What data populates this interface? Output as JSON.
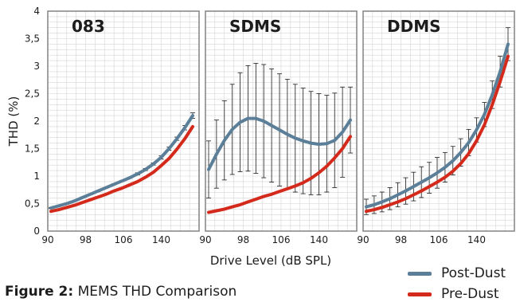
{
  "figure": {
    "caption_label": "Figure 2:",
    "caption_text": " MEMS THD Comparison",
    "colors": {
      "post": "#5c7f99",
      "pre": "#d42a1c",
      "error": "#1a1a1a",
      "grid": "#d4d4d4"
    }
  },
  "chart_data": [
    {
      "type": "line",
      "title": "083",
      "xlabel": "Drive Level (dB SPL)",
      "ylabel": "THD (%)",
      "x_ticks": [
        "90",
        "98",
        "106",
        "140"
      ],
      "ylim": [
        0,
        4
      ],
      "y_ticks": [
        "0",
        "0,5",
        "1",
        "1,5",
        "2",
        "2,5",
        "3",
        "3,5",
        "4"
      ],
      "grid": true,
      "legend": "bottom-right",
      "x": [
        90,
        92,
        94,
        96,
        98,
        100,
        102,
        104,
        106,
        108,
        110,
        112,
        114,
        116,
        118,
        120,
        122,
        124,
        126
      ],
      "series": [
        {
          "name": "Post-Dust",
          "values": [
            0.42,
            0.46,
            0.5,
            0.55,
            0.61,
            0.67,
            0.73,
            0.79,
            0.85,
            0.91,
            0.97,
            1.04,
            1.12,
            1.22,
            1.34,
            1.5,
            1.68,
            1.88,
            2.1
          ]
        },
        {
          "name": "Pre-Dust",
          "values": [
            0.36,
            0.39,
            0.43,
            0.47,
            0.52,
            0.57,
            0.62,
            0.67,
            0.73,
            0.78,
            0.84,
            0.9,
            0.98,
            1.07,
            1.19,
            1.32,
            1.49,
            1.68,
            1.9
          ]
        }
      ],
      "error": {
        "series": "Post-Dust",
        "values": [
          0.01,
          0.01,
          0.01,
          0.01,
          0.01,
          0.01,
          0.01,
          0.01,
          0.01,
          0.01,
          0.01,
          0.02,
          0.02,
          0.02,
          0.03,
          0.03,
          0.03,
          0.04,
          0.05
        ]
      }
    },
    {
      "type": "line",
      "title": "SDMS",
      "x_ticks": [
        "90",
        "98",
        "106",
        "140"
      ],
      "ylim": [
        0,
        4
      ],
      "grid": true,
      "x": [
        90,
        92,
        94,
        96,
        98,
        100,
        102,
        104,
        106,
        108,
        110,
        112,
        114,
        116,
        118,
        120,
        122,
        124,
        126
      ],
      "series": [
        {
          "name": "Post-Dust",
          "values": [
            1.12,
            1.4,
            1.65,
            1.85,
            1.98,
            2.05,
            2.05,
            2.0,
            1.92,
            1.84,
            1.76,
            1.69,
            1.64,
            1.6,
            1.58,
            1.59,
            1.65,
            1.8,
            2.02
          ]
        },
        {
          "name": "Pre-Dust",
          "values": [
            0.34,
            0.37,
            0.4,
            0.44,
            0.48,
            0.53,
            0.58,
            0.63,
            0.67,
            0.72,
            0.77,
            0.82,
            0.88,
            0.96,
            1.06,
            1.18,
            1.33,
            1.5,
            1.72
          ]
        }
      ],
      "error": {
        "series": "Post-Dust",
        "values": [
          0.52,
          0.62,
          0.72,
          0.82,
          0.9,
          0.96,
          1.0,
          1.03,
          1.03,
          1.02,
          1.0,
          0.98,
          0.96,
          0.94,
          0.92,
          0.88,
          0.86,
          0.82,
          0.6
        ]
      }
    },
    {
      "type": "line",
      "title": "DDMS",
      "x_ticks": [
        "90",
        "98",
        "106",
        "140"
      ],
      "ylim": [
        0,
        4
      ],
      "grid": true,
      "x": [
        90,
        92,
        94,
        96,
        98,
        100,
        102,
        104,
        106,
        108,
        110,
        112,
        114,
        116,
        118,
        120,
        122,
        124,
        126
      ],
      "series": [
        {
          "name": "Post-Dust",
          "values": [
            0.44,
            0.48,
            0.53,
            0.59,
            0.66,
            0.73,
            0.81,
            0.89,
            0.97,
            1.06,
            1.16,
            1.28,
            1.43,
            1.61,
            1.84,
            2.12,
            2.48,
            2.9,
            3.4
          ]
        },
        {
          "name": "Pre-Dust",
          "values": [
            0.36,
            0.39,
            0.43,
            0.48,
            0.53,
            0.59,
            0.66,
            0.73,
            0.81,
            0.89,
            0.98,
            1.09,
            1.23,
            1.41,
            1.64,
            1.93,
            2.3,
            2.72,
            3.18
          ]
        }
      ],
      "error": {
        "series": "Post-Dust",
        "values": [
          0.14,
          0.16,
          0.18,
          0.2,
          0.22,
          0.24,
          0.26,
          0.28,
          0.28,
          0.28,
          0.27,
          0.26,
          0.25,
          0.24,
          0.22,
          0.22,
          0.25,
          0.28,
          0.3
        ]
      }
    }
  ]
}
